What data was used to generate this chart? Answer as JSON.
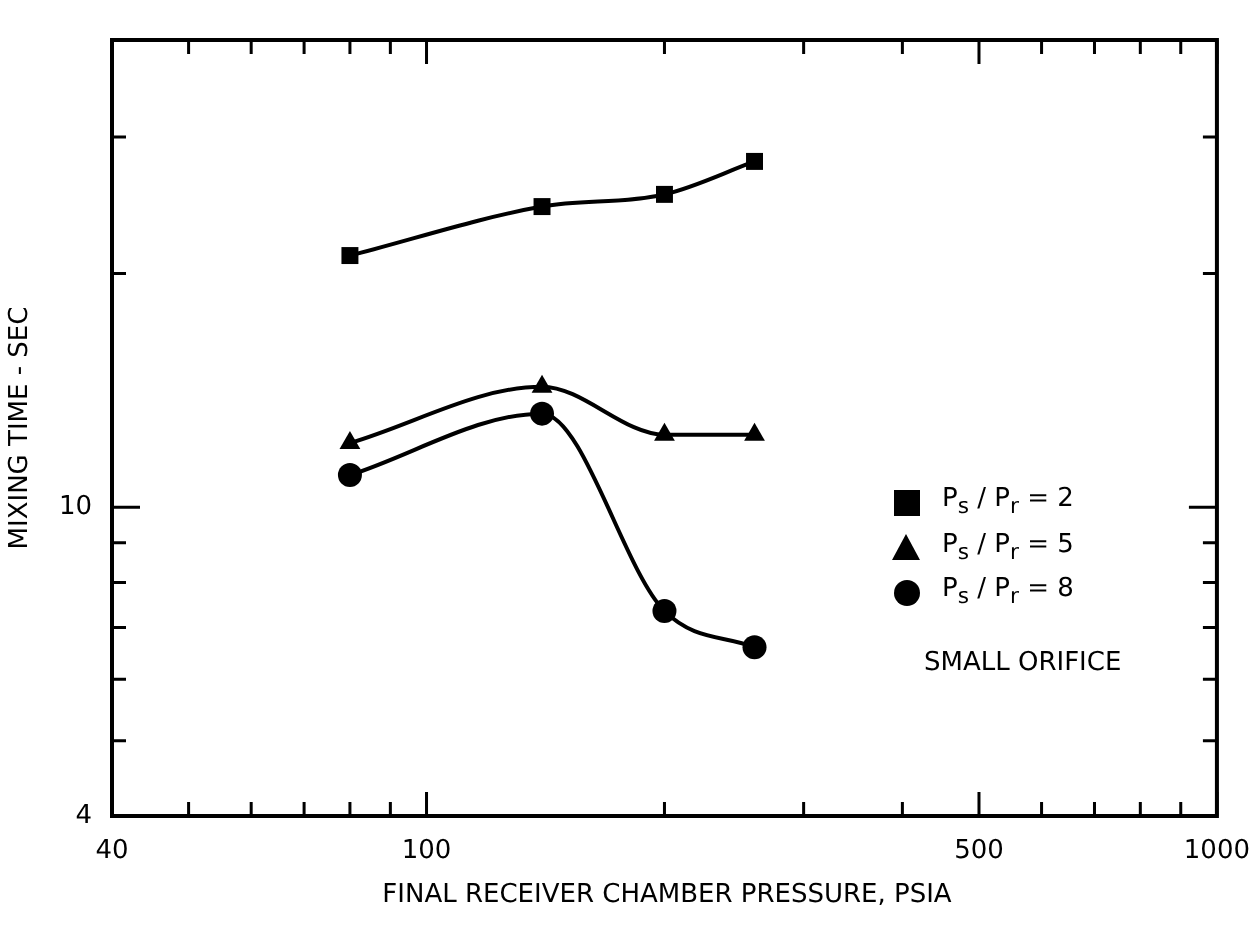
{
  "chart_data": {
    "type": "line",
    "xlabel": "FINAL RECEIVER CHAMBER PRESSURE, PSIA",
    "ylabel": "MIXING TIME - SEC",
    "log": "xy",
    "grid": false,
    "legend": "right",
    "xlim": [
      40,
      1000
    ],
    "ylim": [
      4,
      40
    ],
    "xticks": [
      40,
      {
        "value": 50,
        "label": null
      },
      {
        "value": 60,
        "label": null
      },
      {
        "value": 70,
        "label": null
      },
      {
        "value": 80,
        "label": null
      },
      {
        "value": 90,
        "label": null
      },
      100,
      {
        "value": 200,
        "label": null
      },
      {
        "value": 300,
        "label": null
      },
      {
        "value": 400,
        "label": null
      },
      500,
      {
        "value": 600,
        "label": null
      },
      {
        "value": 700,
        "label": null
      },
      {
        "value": 800,
        "label": null
      },
      {
        "value": 900,
        "label": null
      },
      1000
    ],
    "yticks": [
      4,
      {
        "value": 5,
        "label": null
      },
      {
        "value": 6,
        "label": null
      },
      {
        "value": 7,
        "label": null
      },
      {
        "value": 8,
        "label": null
      },
      {
        "value": 9,
        "label": null
      },
      10,
      {
        "value": 20,
        "label": null
      },
      {
        "value": 30,
        "label": null
      }
    ],
    "x": [
      80,
      140,
      200,
      260
    ],
    "series": [
      {
        "name": "P$_{s}$ / P$_{r}$ = 2",
        "color": "#000000",
        "marker": "square",
        "values": [
          21.1,
          24.4,
          25.3,
          27.9
        ]
      },
      {
        "name": "P$_{s}$ / P$_{r}$ = 5",
        "color": "#000000",
        "marker": "triangle",
        "values": [
          12.1,
          14.3,
          12.4,
          12.4
        ]
      },
      {
        "name": "P$_{s}$ / P$_{r}$ = 8",
        "color": "#000000",
        "marker": "circle",
        "values": [
          11.0,
          13.2,
          7.35,
          6.6
        ]
      }
    ],
    "annotations": [
      "SMALL ORIFICE"
    ]
  }
}
